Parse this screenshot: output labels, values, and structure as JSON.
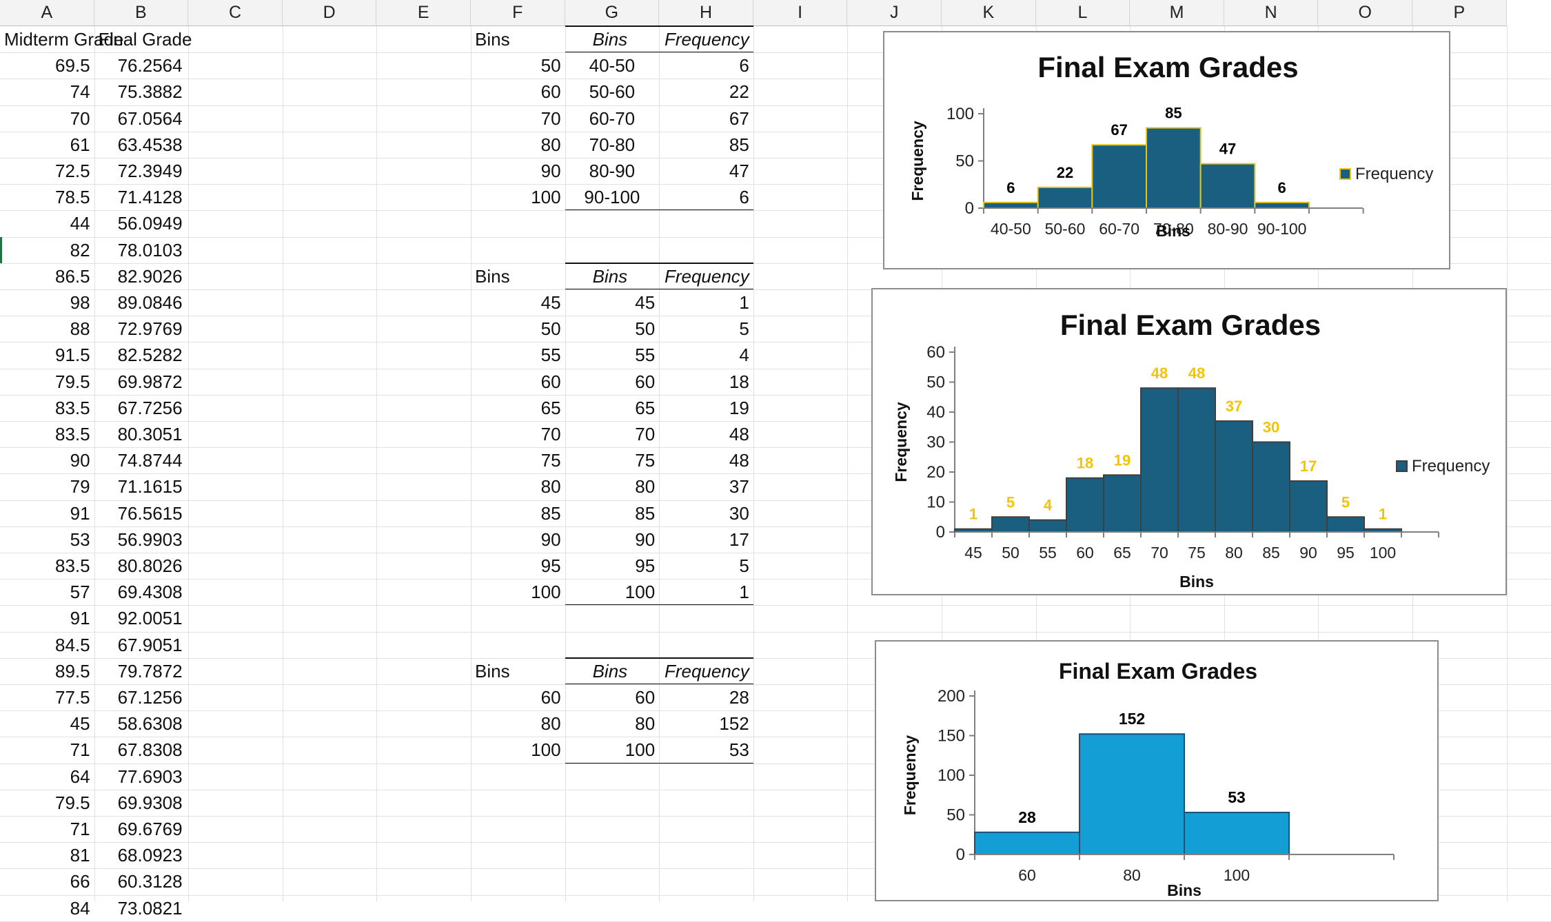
{
  "columns": [
    "A",
    "B",
    "C",
    "D",
    "E",
    "F",
    "G",
    "H",
    "I",
    "J",
    "K",
    "L",
    "M",
    "N",
    "O",
    "P"
  ],
  "colA_header": "Midterm Grade",
  "colB_header": "Final Grade",
  "grades": [
    [
      "69.5",
      "76.2564"
    ],
    [
      "74",
      "75.3882"
    ],
    [
      "70",
      "67.0564"
    ],
    [
      "61",
      "63.4538"
    ],
    [
      "72.5",
      "72.3949"
    ],
    [
      "78.5",
      "71.4128"
    ],
    [
      "44",
      "56.0949"
    ],
    [
      "82",
      "78.0103"
    ],
    [
      "86.5",
      "82.9026"
    ],
    [
      "98",
      "89.0846"
    ],
    [
      "88",
      "72.9769"
    ],
    [
      "91.5",
      "82.5282"
    ],
    [
      "79.5",
      "69.9872"
    ],
    [
      "83.5",
      "67.7256"
    ],
    [
      "83.5",
      "80.3051"
    ],
    [
      "90",
      "74.8744"
    ],
    [
      "79",
      "71.1615"
    ],
    [
      "91",
      "76.5615"
    ],
    [
      "53",
      "56.9903"
    ],
    [
      "83.5",
      "80.8026"
    ],
    [
      "57",
      "69.4308"
    ],
    [
      "91",
      "92.0051"
    ],
    [
      "84.5",
      "67.9051"
    ],
    [
      "89.5",
      "79.7872"
    ],
    [
      "77.5",
      "67.1256"
    ],
    [
      "45",
      "58.6308"
    ],
    [
      "71",
      "67.8308"
    ],
    [
      "64",
      "77.6903"
    ],
    [
      "79.5",
      "69.9308"
    ],
    [
      "71",
      "69.6769"
    ],
    [
      "81",
      "68.0923"
    ],
    [
      "66",
      "60.3128"
    ],
    [
      "84",
      "73.0821"
    ]
  ],
  "tables": [
    {
      "f_label": "Bins",
      "g_header": "Bins",
      "h_header": "Frequency",
      "rows": [
        [
          "50",
          "40-50",
          "6"
        ],
        [
          "60",
          "50-60",
          "22"
        ],
        [
          "70",
          "60-70",
          "67"
        ],
        [
          "80",
          "70-80",
          "85"
        ],
        [
          "90",
          "80-90",
          "47"
        ],
        [
          "100",
          "90-100",
          "6"
        ]
      ]
    },
    {
      "f_label": "Bins",
      "g_header": "Bins",
      "h_header": "Frequency",
      "rows": [
        [
          "45",
          "45",
          "1"
        ],
        [
          "50",
          "50",
          "5"
        ],
        [
          "55",
          "55",
          "4"
        ],
        [
          "60",
          "60",
          "18"
        ],
        [
          "65",
          "65",
          "19"
        ],
        [
          "70",
          "70",
          "48"
        ],
        [
          "75",
          "75",
          "48"
        ],
        [
          "80",
          "80",
          "37"
        ],
        [
          "85",
          "85",
          "30"
        ],
        [
          "90",
          "90",
          "17"
        ],
        [
          "95",
          "95",
          "5"
        ],
        [
          "100",
          "100",
          "1"
        ]
      ]
    },
    {
      "f_label": "Bins",
      "g_header": "Bins",
      "h_header": "Frequency",
      "rows": [
        [
          "60",
          "60",
          "28"
        ],
        [
          "80",
          "80",
          "152"
        ],
        [
          "100",
          "100",
          "53"
        ]
      ]
    }
  ],
  "chart_data": [
    {
      "type": "bar",
      "title": "Final Exam Grades",
      "xlabel": "Bins",
      "ylabel": "Frequency",
      "categories": [
        "40-50",
        "50-60",
        "60-70",
        "70-80",
        "80-90",
        "90-100"
      ],
      "series": [
        {
          "name": "Frequency",
          "values": [
            6,
            22,
            67,
            85,
            47,
            6
          ]
        }
      ],
      "ylim": [
        0,
        100
      ],
      "yticks": [
        0,
        50,
        100
      ],
      "legend": "right",
      "bar_color": "#1a5e80",
      "bar_edge": "#e8c51a",
      "label_color": "#000000"
    },
    {
      "type": "bar",
      "title": "Final Exam Grades",
      "xlabel": "Bins",
      "ylabel": "Frequency",
      "categories": [
        "45",
        "50",
        "55",
        "60",
        "65",
        "70",
        "75",
        "80",
        "85",
        "90",
        "95",
        "100"
      ],
      "series": [
        {
          "name": "Frequency",
          "values": [
            1,
            5,
            4,
            18,
            19,
            48,
            48,
            37,
            30,
            17,
            5,
            1
          ]
        }
      ],
      "ylim": [
        0,
        60
      ],
      "yticks": [
        0,
        10,
        20,
        30,
        40,
        50,
        60
      ],
      "legend": "right",
      "bar_color": "#1a5e80",
      "bar_edge": "#3f3f3f",
      "label_color": "#f5c400"
    },
    {
      "type": "bar",
      "title": "Final Exam Grades",
      "xlabel": "Bins",
      "ylabel": "Frequency",
      "categories": [
        "60",
        "80",
        "100"
      ],
      "series": [
        {
          "values": [
            28,
            152,
            53
          ]
        }
      ],
      "ylim": [
        0,
        200
      ],
      "yticks": [
        0,
        50,
        100,
        150,
        200
      ],
      "legend": "none",
      "bar_color": "#139ed6",
      "bar_edge": "#1c4f73",
      "label_color": "#000000"
    }
  ]
}
